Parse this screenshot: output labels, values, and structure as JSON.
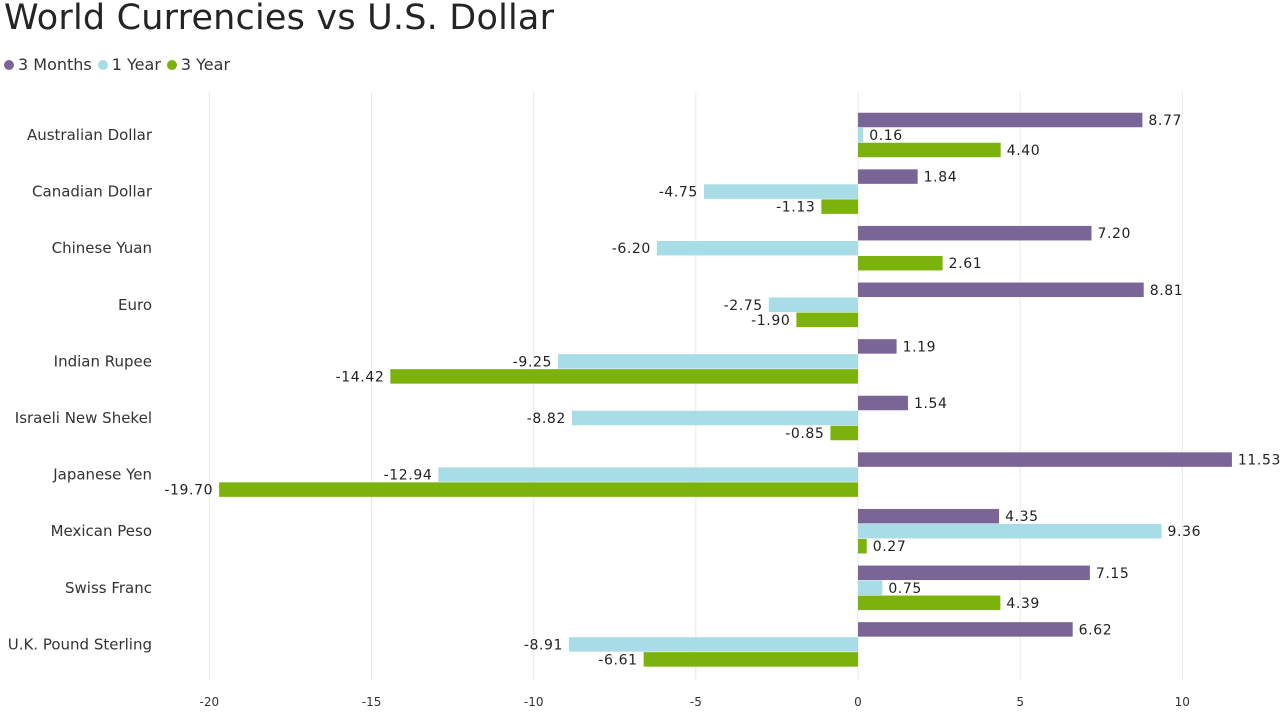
{
  "title": "World Currencies vs U.S. Dollar",
  "colors": {
    "3 Months": "#7a6597",
    "1 Year": "#a8dce6",
    "3 Year": "#7bb30c",
    "grid": "#e8e8e8"
  },
  "chart_data": {
    "type": "bar",
    "orientation": "horizontal",
    "title": "World Currencies vs U.S. Dollar",
    "xlabel": "",
    "ylabel": "",
    "xlim": [
      -20,
      12
    ],
    "xticks": [
      -20,
      -15,
      -10,
      -5,
      0,
      5,
      10
    ],
    "grid": true,
    "legend_position": "top-left",
    "categories": [
      "Australian Dollar",
      "Canadian Dollar",
      "Chinese Yuan",
      "Euro",
      "Indian Rupee",
      "Israeli New Shekel",
      "Japanese Yen",
      "Mexican Peso",
      "Swiss Franc",
      "U.K. Pound Sterling"
    ],
    "series": [
      {
        "name": "3 Months",
        "values": [
          8.77,
          1.84,
          7.2,
          8.81,
          1.19,
          1.54,
          11.53,
          4.35,
          7.15,
          6.62
        ]
      },
      {
        "name": "1 Year",
        "values": [
          0.16,
          -4.75,
          -6.2,
          -2.75,
          -9.25,
          -8.82,
          -12.94,
          9.36,
          0.75,
          -8.91
        ]
      },
      {
        "name": "3 Year",
        "values": [
          4.4,
          -1.13,
          2.61,
          -1.9,
          -14.42,
          -0.85,
          -19.7,
          0.27,
          4.39,
          -6.61
        ]
      }
    ]
  }
}
